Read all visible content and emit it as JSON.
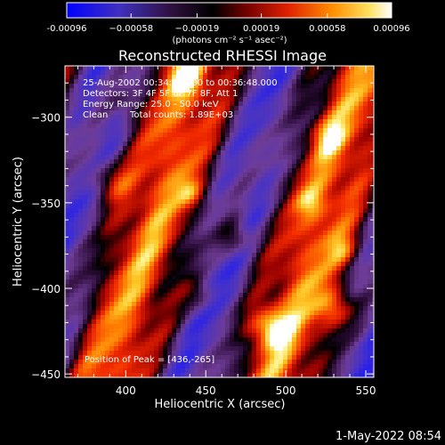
{
  "chart_data": {
    "type": "heatmap",
    "title": "Reconstructed RHESSI Image",
    "xlabel": "Heliocentric X (arcsec)",
    "ylabel": "Heliocentric Y (arcsec)",
    "xlim": [
      362,
      555
    ],
    "ylim": [
      -452,
      -270
    ],
    "x_ticks": [
      400,
      450,
      500,
      550
    ],
    "y_ticks": [
      -300,
      -350,
      -400,
      -450
    ],
    "x_tick_labels": [
      "400",
      "450",
      "500",
      "550"
    ],
    "y_tick_labels": [
      "−300",
      "−350",
      "−400",
      "−450"
    ],
    "colorbar": {
      "range": [
        -0.00096,
        0.00096
      ],
      "tick_values": [
        -0.00096,
        -0.00058,
        -0.00019,
        0.00019,
        0.00058,
        0.00096
      ],
      "tick_labels": [
        "-0.00096",
        "−0.00058",
        "−0.00019",
        "0.00019",
        "0.00058",
        "0.00096"
      ],
      "unit": "(photons cm⁻² s⁻¹ asec⁻²)",
      "colors": [
        "#0000ff",
        "#5a2a9a",
        "#000000",
        "#a00000",
        "#ff3c00",
        "#ffa000",
        "#ffff80",
        "#ffffff"
      ]
    },
    "annotations": {
      "time_range": "25-Aug-2002 00:34:28.000 to 00:36:48.000",
      "detectors": "Detectors: 3F 4F 5F 6F 7F 8F, Att 1",
      "energy": "Energy Range: 25.0 - 50.0 keV",
      "method": "Clean",
      "counts": "Total counts: 1.89E+03",
      "peak": "Position of Peak = [436,-265]"
    },
    "peak_position": [
      436,
      -265
    ]
  },
  "footer": {
    "timestamp": "1-May-2022 08:54"
  }
}
